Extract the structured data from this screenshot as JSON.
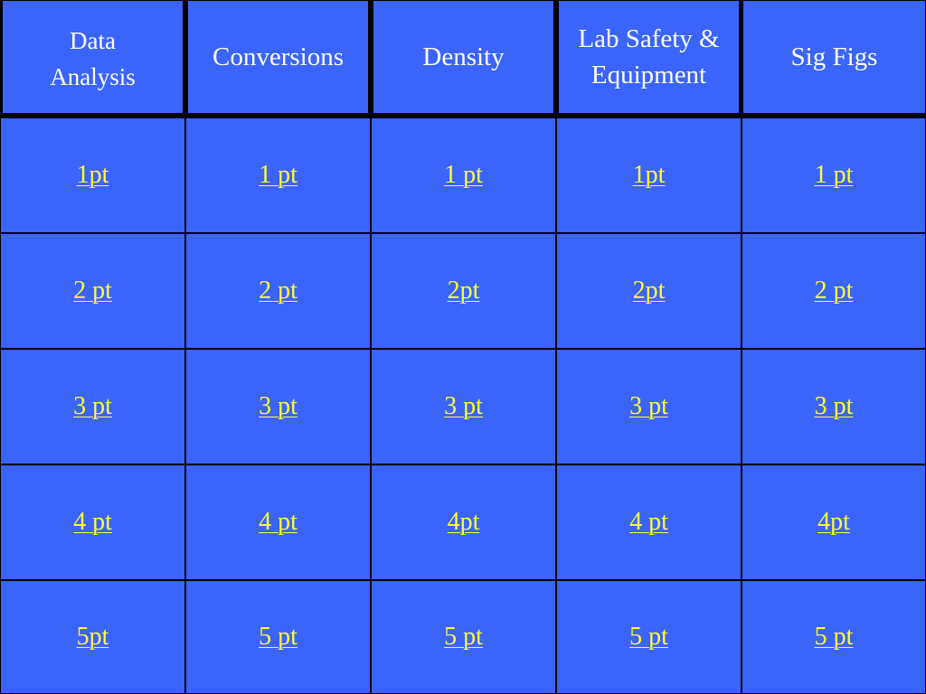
{
  "board": {
    "colors": {
      "cell_background": "#3b64fa",
      "grid_lines": "#000000",
      "header_text": "#ffffff",
      "link_text": "#ffff33"
    },
    "categories": [
      "Data\nAnalysis",
      "Conversions",
      "Density",
      "Lab Safety &\nEquipment",
      "Sig Figs"
    ],
    "rows": [
      [
        "1pt",
        "1 pt",
        "1 pt",
        "1pt",
        "1 pt"
      ],
      [
        "2 pt",
        "2 pt",
        "2pt",
        "2pt",
        "2 pt"
      ],
      [
        "3 pt",
        "3 pt",
        "3 pt",
        "3 pt",
        "3 pt"
      ],
      [
        "4 pt",
        "4 pt",
        "4pt",
        "4 pt",
        "4pt"
      ],
      [
        "5pt",
        "5 pt",
        "5 pt",
        "5 pt",
        "5 pt"
      ]
    ]
  }
}
